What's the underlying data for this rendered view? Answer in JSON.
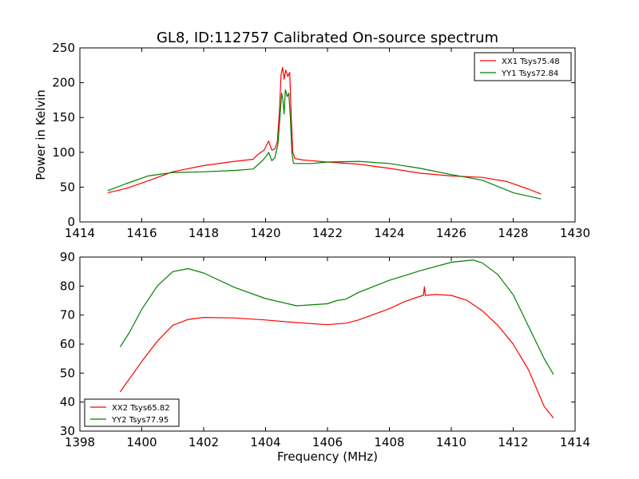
{
  "figure": {
    "title": "GL8, ID:112757 Calibrated On-source spectrum",
    "xlabel": "Frequency (MHz)"
  },
  "chart_data": [
    {
      "type": "line",
      "title": "GL8, ID:112757 Calibrated On-source spectrum",
      "xlabel": "",
      "ylabel": "Power in Kelvin",
      "xlim": [
        1414,
        1430
      ],
      "ylim": [
        0,
        250
      ],
      "xticks": [
        1414,
        1416,
        1418,
        1420,
        1422,
        1424,
        1426,
        1428,
        1430
      ],
      "yticks": [
        0,
        50,
        100,
        150,
        200,
        250
      ],
      "grid": false,
      "legend": "top-right",
      "series": [
        {
          "name": "XX1 Tsys75.48",
          "color": "#ff0000",
          "points": [
            [
              1414.9,
              42
            ],
            [
              1415.5,
              48
            ],
            [
              1416.2,
              59
            ],
            [
              1417,
              72
            ],
            [
              1418,
              81
            ],
            [
              1419,
              87
            ],
            [
              1419.6,
              90
            ],
            [
              1419.75,
              97
            ],
            [
              1419.85,
              100
            ],
            [
              1419.95,
              103
            ],
            [
              1420.05,
              112
            ],
            [
              1420.1,
              116
            ],
            [
              1420.2,
              103
            ],
            [
              1420.3,
              105
            ],
            [
              1420.38,
              115
            ],
            [
              1420.45,
              160
            ],
            [
              1420.5,
              212
            ],
            [
              1420.55,
              222
            ],
            [
              1420.6,
              205
            ],
            [
              1420.65,
              218
            ],
            [
              1420.72,
              209
            ],
            [
              1420.78,
              215
            ],
            [
              1420.83,
              150
            ],
            [
              1420.88,
              100
            ],
            [
              1420.95,
              91
            ],
            [
              1421.2,
              89
            ],
            [
              1422,
              86
            ],
            [
              1423,
              83
            ],
            [
              1424,
              77
            ],
            [
              1425,
              70
            ],
            [
              1426,
              66
            ],
            [
              1427,
              64
            ],
            [
              1427.8,
              58
            ],
            [
              1428.5,
              47
            ],
            [
              1428.9,
              40
            ]
          ]
        },
        {
          "name": "YY1 Tsys72.84",
          "color": "#008000",
          "points": [
            [
              1414.9,
              45
            ],
            [
              1415.5,
              55
            ],
            [
              1416.2,
              66
            ],
            [
              1417,
              71
            ],
            [
              1418,
              72
            ],
            [
              1419,
              74
            ],
            [
              1419.6,
              76
            ],
            [
              1419.75,
              82
            ],
            [
              1419.9,
              88
            ],
            [
              1420.05,
              96
            ],
            [
              1420.1,
              100
            ],
            [
              1420.2,
              88
            ],
            [
              1420.3,
              92
            ],
            [
              1420.4,
              112
            ],
            [
              1420.48,
              160
            ],
            [
              1420.52,
              185
            ],
            [
              1420.56,
              175
            ],
            [
              1420.6,
              155
            ],
            [
              1420.64,
              190
            ],
            [
              1420.7,
              180
            ],
            [
              1420.75,
              185
            ],
            [
              1420.8,
              150
            ],
            [
              1420.85,
              100
            ],
            [
              1420.9,
              84
            ],
            [
              1421.5,
              84
            ],
            [
              1422,
              86
            ],
            [
              1423,
              87
            ],
            [
              1424,
              84
            ],
            [
              1425,
              77
            ],
            [
              1426,
              68
            ],
            [
              1427,
              60
            ],
            [
              1428,
              42
            ],
            [
              1428.9,
              33
            ]
          ]
        }
      ]
    },
    {
      "type": "line",
      "title": "",
      "xlabel": "Frequency (MHz)",
      "ylabel": "",
      "xlim": [
        1398,
        1414
      ],
      "ylim": [
        30,
        90
      ],
      "xticks": [
        1398,
        1400,
        1402,
        1404,
        1406,
        1408,
        1410,
        1412,
        1414
      ],
      "yticks": [
        30,
        40,
        50,
        60,
        70,
        80,
        90
      ],
      "grid": false,
      "legend": "bottom-left",
      "series": [
        {
          "name": "XX2 Tsys65.82",
          "color": "#ff0000",
          "points": [
            [
              1399.3,
              43.5
            ],
            [
              1400,
              54
            ],
            [
              1400.5,
              61
            ],
            [
              1401,
              66.5
            ],
            [
              1401.5,
              68.5
            ],
            [
              1402,
              69.2
            ],
            [
              1403,
              69
            ],
            [
              1404,
              68.3
            ],
            [
              1405,
              67.4
            ],
            [
              1406,
              66.7
            ],
            [
              1406.6,
              67.2
            ],
            [
              1407,
              68.3
            ],
            [
              1408,
              72.2
            ],
            [
              1408.5,
              74.7
            ],
            [
              1409,
              76.5
            ],
            [
              1409.1,
              76.8
            ],
            [
              1409.13,
              79.8
            ],
            [
              1409.16,
              76.8
            ],
            [
              1409.5,
              77.1
            ],
            [
              1410,
              76.8
            ],
            [
              1410.5,
              75.1
            ],
            [
              1411,
              71.5
            ],
            [
              1411.5,
              66.5
            ],
            [
              1412,
              60
            ],
            [
              1412.5,
              51
            ],
            [
              1413,
              38.5
            ],
            [
              1413.3,
              34.5
            ]
          ]
        },
        {
          "name": "YY2 Tsys77.95",
          "color": "#008000",
          "points": [
            [
              1399.3,
              59
            ],
            [
              1399.6,
              64
            ],
            [
              1400,
              72
            ],
            [
              1400.5,
              80
            ],
            [
              1401,
              85
            ],
            [
              1401.5,
              86
            ],
            [
              1402,
              84.5
            ],
            [
              1403,
              79.5
            ],
            [
              1404,
              75.7
            ],
            [
              1405,
              73.2
            ],
            [
              1406,
              73.9
            ],
            [
              1406.3,
              75
            ],
            [
              1406.6,
              75.5
            ],
            [
              1407,
              77.8
            ],
            [
              1408,
              82
            ],
            [
              1409,
              85.3
            ],
            [
              1410,
              88.2
            ],
            [
              1410.7,
              89
            ],
            [
              1411,
              88
            ],
            [
              1411.5,
              84
            ],
            [
              1412,
              77
            ],
            [
              1412.5,
              66
            ],
            [
              1413,
              55
            ],
            [
              1413.3,
              49.5
            ]
          ]
        }
      ]
    }
  ]
}
